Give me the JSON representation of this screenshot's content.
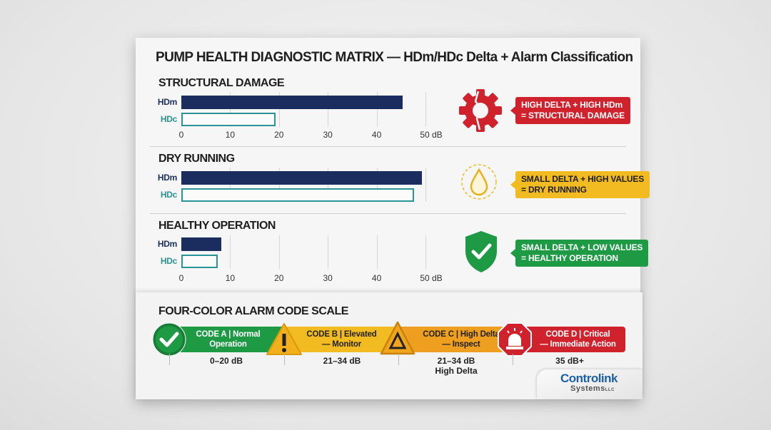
{
  "title": "PUMP HEALTH DIAGNOSTIC MATRIX — HDm/HDc Delta + Alarm Classification",
  "colors": {
    "hdm": "#1a2d5e",
    "hdc": "#2a9393",
    "red": "#d0222c",
    "yellow": "#f2bb22",
    "green": "#1e9a45",
    "orange": "#ee9f1f"
  },
  "chart_data": [
    {
      "type": "bar",
      "title": "STRUCTURAL DAMAGE",
      "orientation": "horizontal",
      "categories": [
        "HDm",
        "HDc"
      ],
      "values": [
        45.3,
        19.3
      ],
      "xlim": [
        0,
        50
      ],
      "xticks": [
        "0",
        "10",
        "20",
        "30",
        "40",
        "50 dB"
      ],
      "grid": true
    },
    {
      "type": "bar",
      "title": "DRY RUNNING",
      "orientation": "horizontal",
      "categories": [
        "HDm",
        "HDc"
      ],
      "values": [
        49.3,
        47.7
      ],
      "xlim": [
        0,
        50
      ],
      "xticks": [],
      "grid": true
    },
    {
      "type": "bar",
      "title": "HEALTHY OPERATION",
      "orientation": "horizontal",
      "categories": [
        "HDm",
        "HDc"
      ],
      "values": [
        8.2,
        7.5
      ],
      "xlim": [
        0,
        50
      ],
      "xticks": [
        "0",
        "10",
        "20",
        "30",
        "40",
        "50 dB"
      ],
      "grid": true
    }
  ],
  "callouts": [
    {
      "icon": "broken-gear-icon",
      "line1": "HIGH DELTA + HIGH HDm",
      "line2": "= STRUCTURAL DAMAGE",
      "color": "#d0222c",
      "text_color": "#ffffff"
    },
    {
      "icon": "water-drop-icon",
      "line1": "SMALL DELTA + HIGH VALUES",
      "line2": "= DRY RUNNING",
      "color": "#f2bb22",
      "text_color": "#1e1e1e"
    },
    {
      "icon": "shield-check-icon",
      "line1": "SMALL DELTA + LOW VALUES",
      "line2": "= HEALTHY OPERATION",
      "color": "#1e9a45",
      "text_color": "#ffffff"
    }
  ],
  "alarm": {
    "title": "FOUR-COLOR ALARM CODE SCALE",
    "codes": [
      {
        "icon": "check-circle-icon",
        "line1": "CODE A | Normal",
        "line2": "Operation",
        "range": "0–20 dB",
        "range2": "",
        "color": "#1e9a45"
      },
      {
        "icon": "warning-exclamation-icon",
        "line1": "CODE B | Elevated",
        "line2": "— Monitor",
        "range": "21–34 dB",
        "range2": "",
        "color": "#f2bb22"
      },
      {
        "icon": "delta-warning-icon",
        "line1": "CODE C | High Delta",
        "line2": "— Inspect",
        "range": "21–34 dB",
        "range2": "High Delta",
        "color": "#ee9f1f"
      },
      {
        "icon": "siren-stop-icon",
        "line1": "CODE D | Critical",
        "line2": "— Immediate Action",
        "range": "35 dB+",
        "range2": "",
        "color": "#d0222c"
      }
    ]
  },
  "logo": {
    "line1": "Controlink",
    "line2": "Systems",
    "suffix": "LLC"
  }
}
